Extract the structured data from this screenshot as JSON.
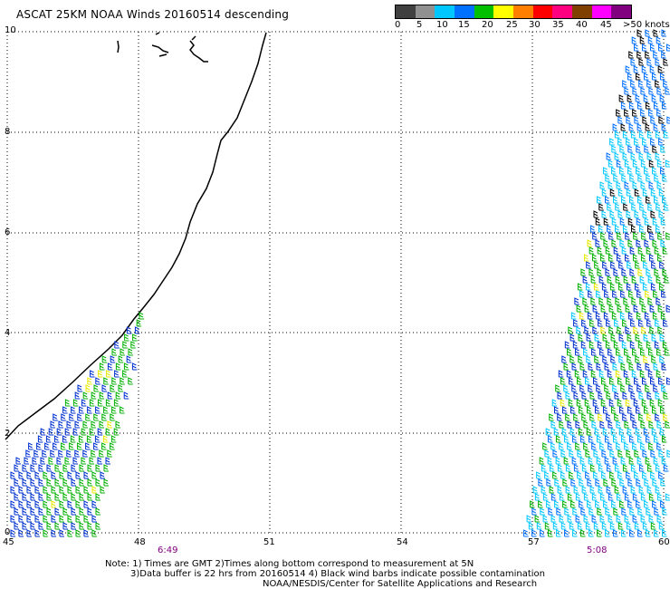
{
  "title": "ASCAT 25KM NOAA Winds 20160514 descending",
  "legend": {
    "labels": [
      "0",
      "5",
      "10",
      "15",
      "20",
      "25",
      "30",
      "35",
      "40",
      "45",
      ">50 knots"
    ],
    "colors": [
      "#404040",
      "#909090",
      "#00c8ff",
      "#0070ff",
      "#00c000",
      "#ffff00",
      "#ff8000",
      "#ff0000",
      "#ff0080",
      "#804000",
      "#ff00ff",
      "#800080"
    ]
  },
  "map": {
    "lon_range": [
      45,
      60
    ],
    "lat_range": [
      0,
      10
    ],
    "lon_ticks": [
      "45",
      "48",
      "51",
      "54",
      "57",
      "60"
    ],
    "lat_ticks": [
      "0",
      "2",
      "4",
      "6",
      "8",
      "10"
    ],
    "pass_times": [
      "6:49",
      "5:08"
    ]
  },
  "notes": {
    "line1": "Note: 1) Times are GMT 2)Times along bottom correspond to measurement at 5N",
    "line2": "3)Data buffer is 22 hrs from 20160514 4) Black wind barbs indicate possible contamination",
    "line3": "NOAA/NESDIS/Center for Satellite Applications and Research"
  }
}
